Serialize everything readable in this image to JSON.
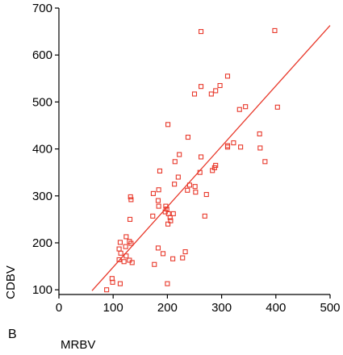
{
  "panel_label": "B",
  "chart_data": {
    "type": "scatter",
    "title": "",
    "xlabel": "MRBV",
    "ylabel": "CDBV",
    "xlim": [
      0,
      500
    ],
    "ylim": [
      90,
      700
    ],
    "x_ticks": [
      0,
      100,
      200,
      300,
      400,
      500
    ],
    "y_ticks": [
      100,
      200,
      300,
      400,
      500,
      600,
      700
    ],
    "grid": false,
    "legend": "none",
    "marker_color": "#e8382a",
    "line_color": "#e8382a",
    "points": [
      [
        262,
        650
      ],
      [
        398,
        652
      ],
      [
        311,
        555
      ],
      [
        297,
        535
      ],
      [
        262,
        533
      ],
      [
        289,
        524
      ],
      [
        281,
        517
      ],
      [
        250,
        517
      ],
      [
        344,
        490
      ],
      [
        403,
        489
      ],
      [
        333,
        484
      ],
      [
        201,
        452
      ],
      [
        311,
        407
      ],
      [
        322,
        413
      ],
      [
        311,
        404
      ],
      [
        335,
        404
      ],
      [
        370,
        432
      ],
      [
        371,
        402
      ],
      [
        380,
        373
      ],
      [
        238,
        425
      ],
      [
        222,
        388
      ],
      [
        214,
        373
      ],
      [
        186,
        353
      ],
      [
        262,
        383
      ],
      [
        260,
        350
      ],
      [
        289,
        365
      ],
      [
        287,
        360
      ],
      [
        283,
        354
      ],
      [
        220,
        340
      ],
      [
        213,
        325
      ],
      [
        241,
        323
      ],
      [
        251,
        320
      ],
      [
        237,
        312
      ],
      [
        252,
        308
      ],
      [
        272,
        303
      ],
      [
        132,
        298
      ],
      [
        133,
        292
      ],
      [
        184,
        313
      ],
      [
        174,
        305
      ],
      [
        183,
        290
      ],
      [
        184,
        278
      ],
      [
        197,
        278
      ],
      [
        199,
        272
      ],
      [
        196,
        266
      ],
      [
        202,
        262
      ],
      [
        211,
        262
      ],
      [
        205,
        254
      ],
      [
        206,
        247
      ],
      [
        201,
        240
      ],
      [
        173,
        257
      ],
      [
        131,
        250
      ],
      [
        269,
        257
      ],
      [
        124,
        213
      ],
      [
        130,
        203
      ],
      [
        113,
        201
      ],
      [
        133,
        199
      ],
      [
        123,
        192
      ],
      [
        111,
        187
      ],
      [
        114,
        178
      ],
      [
        124,
        172
      ],
      [
        111,
        164
      ],
      [
        120,
        160
      ],
      [
        130,
        163
      ],
      [
        135,
        158
      ],
      [
        183,
        189
      ],
      [
        192,
        177
      ],
      [
        233,
        181
      ],
      [
        228,
        168
      ],
      [
        210,
        166
      ],
      [
        176,
        154
      ],
      [
        200,
        113
      ],
      [
        113,
        113
      ],
      [
        98,
        124
      ],
      [
        99,
        116
      ],
      [
        88,
        100
      ]
    ],
    "fit_line": {
      "x": [
        61,
        500
      ],
      "y": [
        98,
        663
      ]
    }
  }
}
